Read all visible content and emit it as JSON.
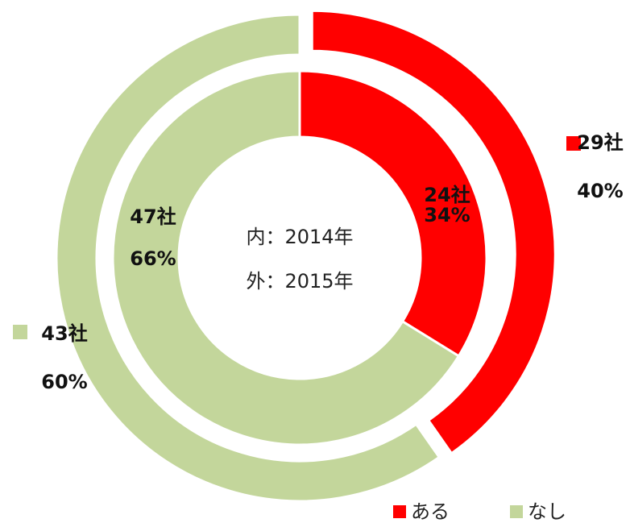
{
  "chart_data": {
    "type": "donut",
    "categories": [
      "ある",
      "なし"
    ],
    "colors": [
      "#ff0000",
      "#c3d69b"
    ],
    "series": [
      {
        "name": "内：2014年",
        "values": [
          24,
          47
        ],
        "value_labels": [
          "24社",
          "47社"
        ],
        "percents": [
          34,
          66
        ],
        "percent_labels": [
          "34%",
          "66%"
        ]
      },
      {
        "name": "外：2015年",
        "values": [
          29,
          43
        ],
        "value_labels": [
          "29社",
          "43社"
        ],
        "percents": [
          40,
          60
        ],
        "percent_labels": [
          "40%",
          "60%"
        ]
      }
    ],
    "legend": "bottom-right"
  }
}
